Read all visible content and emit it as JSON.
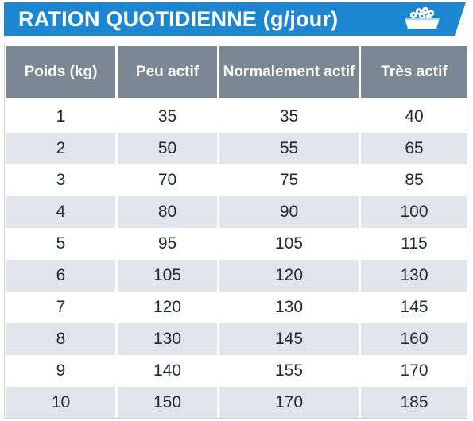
{
  "header": {
    "title": "RATION QUOTIDIENNE (g/jour)",
    "icon": "food-bowl-icon",
    "colors": {
      "banner": "#1d86d1",
      "table_header": "#7b8793",
      "row_alt": "#e1e5e9"
    }
  },
  "table": {
    "columns": [
      "Poids (kg)",
      "Peu actif",
      "Normalement actif",
      "Très actif"
    ],
    "rows": [
      [
        "1",
        "35",
        "35",
        "40"
      ],
      [
        "2",
        "50",
        "55",
        "65"
      ],
      [
        "3",
        "70",
        "75",
        "85"
      ],
      [
        "4",
        "80",
        "90",
        "100"
      ],
      [
        "5",
        "95",
        "105",
        "115"
      ],
      [
        "6",
        "105",
        "120",
        "130"
      ],
      [
        "7",
        "120",
        "130",
        "145"
      ],
      [
        "8",
        "130",
        "145",
        "160"
      ],
      [
        "9",
        "140",
        "155",
        "170"
      ],
      [
        "10",
        "150",
        "170",
        "185"
      ]
    ]
  }
}
